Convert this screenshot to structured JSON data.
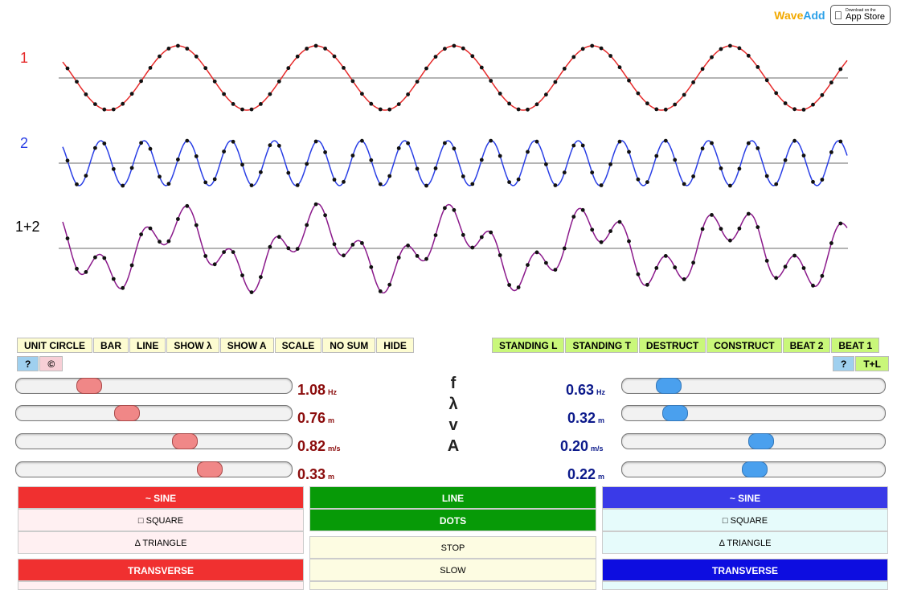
{
  "brand": {
    "name_part1": "Wave",
    "name_part2": "Add",
    "appstore_small": "Download on the",
    "appstore_big": "App Store"
  },
  "wave_labels": {
    "wave1": "1",
    "wave2": "2",
    "sum": "1+2"
  },
  "colors": {
    "wave1": "#e52a2a",
    "wave2": "#2a3fe5",
    "sum": "#8b1a8b",
    "dots": "#111111",
    "axis": "#888888"
  },
  "toolbar_left": [
    "UNIT CIRCLE",
    "BAR",
    "LINE",
    "SHOW λ",
    "SHOW A",
    "SCALE",
    "NO SUM",
    "HIDE"
  ],
  "toolbar_right": [
    "STANDING L",
    "STANDING T",
    "DESTRUCT",
    "CONSTRUCT",
    "BEAT 2",
    "BEAT 1"
  ],
  "help_left": {
    "help": "?",
    "copyright": "©"
  },
  "help_right": {
    "help": "?",
    "tl": "T+L"
  },
  "params": {
    "f": "f",
    "lambda": "λ",
    "v": "v",
    "A": "A"
  },
  "wave1": {
    "frequency": {
      "value": "1.08",
      "unit": "Hz",
      "level": 0.24
    },
    "wavelength": {
      "value": "0.76",
      "unit": "m",
      "level": 0.39
    },
    "speed": {
      "value": "0.82",
      "unit": "m/s",
      "level": 0.62
    },
    "amplitude": {
      "value": "0.33",
      "unit": "m",
      "level": 0.72
    }
  },
  "wave2": {
    "frequency": {
      "value": "0.63",
      "unit": "Hz",
      "level": 0.14
    },
    "wavelength": {
      "value": "0.32",
      "unit": "m",
      "level": 0.17
    },
    "speed": {
      "value": "0.20",
      "unit": "m/s",
      "level": 0.53
    },
    "amplitude": {
      "value": "0.22",
      "unit": "m",
      "level": 0.5
    }
  },
  "left_panel": {
    "sine": "~ SINE",
    "square": "□ SQUARE",
    "triangle": "Δ TRIANGLE",
    "transverse": "TRANSVERSE"
  },
  "middle_panel": {
    "line": "LINE",
    "dots": "DOTS",
    "stop": "STOP",
    "slow": "SLOW"
  },
  "right_panel": {
    "sine": "~ SINE",
    "square": "□ SQUARE",
    "triangle": "Δ TRIANGLE",
    "transverse": "TRANSVERSE"
  }
}
